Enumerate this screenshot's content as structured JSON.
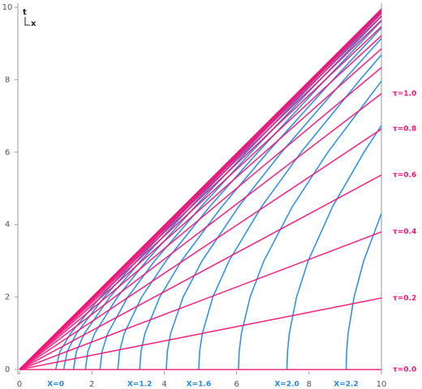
{
  "chart_data": {
    "type": "line",
    "xlabel": "x",
    "ylabel": "t",
    "xlim": [
      0,
      10
    ],
    "ylim": [
      0,
      10
    ],
    "xticks": [
      0,
      2,
      4,
      6,
      8,
      10
    ],
    "yticks": [
      0,
      2,
      4,
      6,
      8,
      10
    ],
    "series": [
      {
        "color": "#1f86de",
        "label": "X=0",
        "x": [
          1,
          1.118,
          1.414,
          2.236,
          3.162,
          4.61,
          6.083,
          8.062,
          10
        ],
        "values": [
          0,
          0.5,
          1,
          2,
          3,
          4.5,
          6,
          8,
          9.95
        ]
      },
      {
        "color": "#1f86de",
        "x": [
          1.221,
          1.32,
          1.579,
          2.343,
          3.239,
          4.663,
          6.123,
          8.093,
          10
        ],
        "values": [
          0,
          0.5,
          1,
          2,
          3,
          4.5,
          6,
          8,
          9.925
        ]
      },
      {
        "color": "#1f86de",
        "x": [
          1.492,
          1.573,
          1.796,
          2.495,
          3.35,
          4.741,
          6.183,
          8.138,
          10
        ],
        "values": [
          0,
          0.5,
          1,
          2,
          3,
          4.5,
          6,
          8,
          9.888
        ]
      },
      {
        "color": "#1f86de",
        "x": [
          1.822,
          1.889,
          2.078,
          2.706,
          3.51,
          4.855,
          6.271,
          8.205,
          10
        ],
        "values": [
          0,
          0.5,
          1,
          2,
          3,
          4.5,
          6,
          8,
          9.833
        ]
      },
      {
        "color": "#1f86de",
        "x": [
          2.226,
          2.281,
          2.44,
          2.992,
          3.735,
          5.02,
          6.399,
          8.304,
          10
        ],
        "values": [
          0,
          0.5,
          1,
          2,
          3,
          4.5,
          6,
          8,
          9.749
        ]
      },
      {
        "color": "#1f86de",
        "x": [
          2.718,
          2.764,
          2.896,
          3.375,
          4.048,
          5.257,
          6.587,
          8.449,
          10
        ],
        "values": [
          0,
          0.5,
          1,
          2,
          3,
          4.5,
          6,
          8,
          9.623
        ]
      },
      {
        "color": "#1f86de",
        "label": "X=1.2",
        "x": [
          3.32,
          3.358,
          3.467,
          3.876,
          4.475,
          5.592,
          6.857,
          8.662,
          10
        ],
        "values": [
          0,
          0.5,
          1,
          2,
          3,
          4.5,
          6,
          8,
          9.433
        ]
      },
      {
        "color": "#1f86de",
        "x": [
          4.055,
          4.086,
          4.177,
          4.522,
          5.044,
          6.058,
          7.242,
          8.969,
          10
        ],
        "values": [
          0,
          0.5,
          1,
          2,
          3,
          4.5,
          6,
          8,
          9.141
        ]
      },
      {
        "color": "#1f86de",
        "label": "X=1.6",
        "x": [
          4.953,
          4.978,
          5.053,
          5.342,
          5.791,
          6.692,
          7.78,
          9.409,
          10
        ],
        "values": [
          0,
          0.5,
          1,
          2,
          3,
          4.5,
          6,
          8,
          8.687
        ]
      },
      {
        "color": "#1f86de",
        "x": [
          6.05,
          6.07,
          6.132,
          6.372,
          6.753,
          7.54,
          8.52,
          10
        ],
        "values": [
          0,
          0.5,
          1,
          2,
          3,
          4.5,
          6,
          7.963
        ]
      },
      {
        "color": "#1f86de",
        "label": "X=2.0",
        "x": [
          7.389,
          7.406,
          7.456,
          7.655,
          7.975,
          8.652,
          9.518,
          10
        ],
        "values": [
          0,
          0.5,
          1,
          2,
          3,
          4.5,
          6,
          6.738
        ]
      },
      {
        "color": "#1f86de",
        "label": "X=2.2",
        "x": [
          9.025,
          9.039,
          9.08,
          9.244,
          9.511,
          10
        ],
        "values": [
          0,
          0.5,
          1,
          2,
          3,
          4.307
        ]
      },
      {
        "color": "#ef1578",
        "label": "τ=0.0",
        "x": [
          0,
          10
        ],
        "values": [
          0,
          0
        ]
      },
      {
        "color": "#ef1578",
        "label": "τ=0.2",
        "x": [
          0,
          10
        ],
        "values": [
          0,
          1.974
        ]
      },
      {
        "color": "#ef1578",
        "label": "τ=0.4",
        "x": [
          0,
          10
        ],
        "values": [
          0,
          3.799
        ]
      },
      {
        "color": "#ef1578",
        "label": "τ=0.6",
        "x": [
          0,
          10
        ],
        "values": [
          0,
          5.37
        ]
      },
      {
        "color": "#ef1578",
        "label": "τ=0.8",
        "x": [
          0,
          10
        ],
        "values": [
          0,
          6.64
        ]
      },
      {
        "color": "#ef1578",
        "label": "τ=1.0",
        "x": [
          0,
          10
        ],
        "values": [
          0,
          7.616
        ]
      },
      {
        "color": "#ef1578",
        "x": [
          0,
          10
        ],
        "values": [
          0,
          8.337
        ]
      },
      {
        "color": "#ef1578",
        "x": [
          0,
          10
        ],
        "values": [
          0,
          8.854
        ]
      },
      {
        "color": "#ef1578",
        "x": [
          0,
          10
        ],
        "values": [
          0,
          9.217
        ]
      },
      {
        "color": "#ef1578",
        "x": [
          0,
          10
        ],
        "values": [
          0,
          9.468
        ]
      },
      {
        "color": "#ef1578",
        "x": [
          0,
          10
        ],
        "values": [
          0,
          9.64
        ]
      },
      {
        "color": "#ef1578",
        "x": [
          0,
          10
        ],
        "values": [
          0,
          9.757
        ]
      },
      {
        "color": "#ef1578",
        "x": [
          0,
          10
        ],
        "values": [
          0,
          9.837
        ]
      },
      {
        "color": "#ef1578",
        "x": [
          0,
          10
        ],
        "values": [
          0,
          9.89
        ]
      },
      {
        "color": "#ef1578",
        "x": [
          0,
          10
        ],
        "values": [
          0,
          9.926
        ]
      },
      {
        "color": "#ef1578",
        "x": [
          0,
          10
        ],
        "values": [
          0,
          9.951
        ]
      }
    ]
  }
}
